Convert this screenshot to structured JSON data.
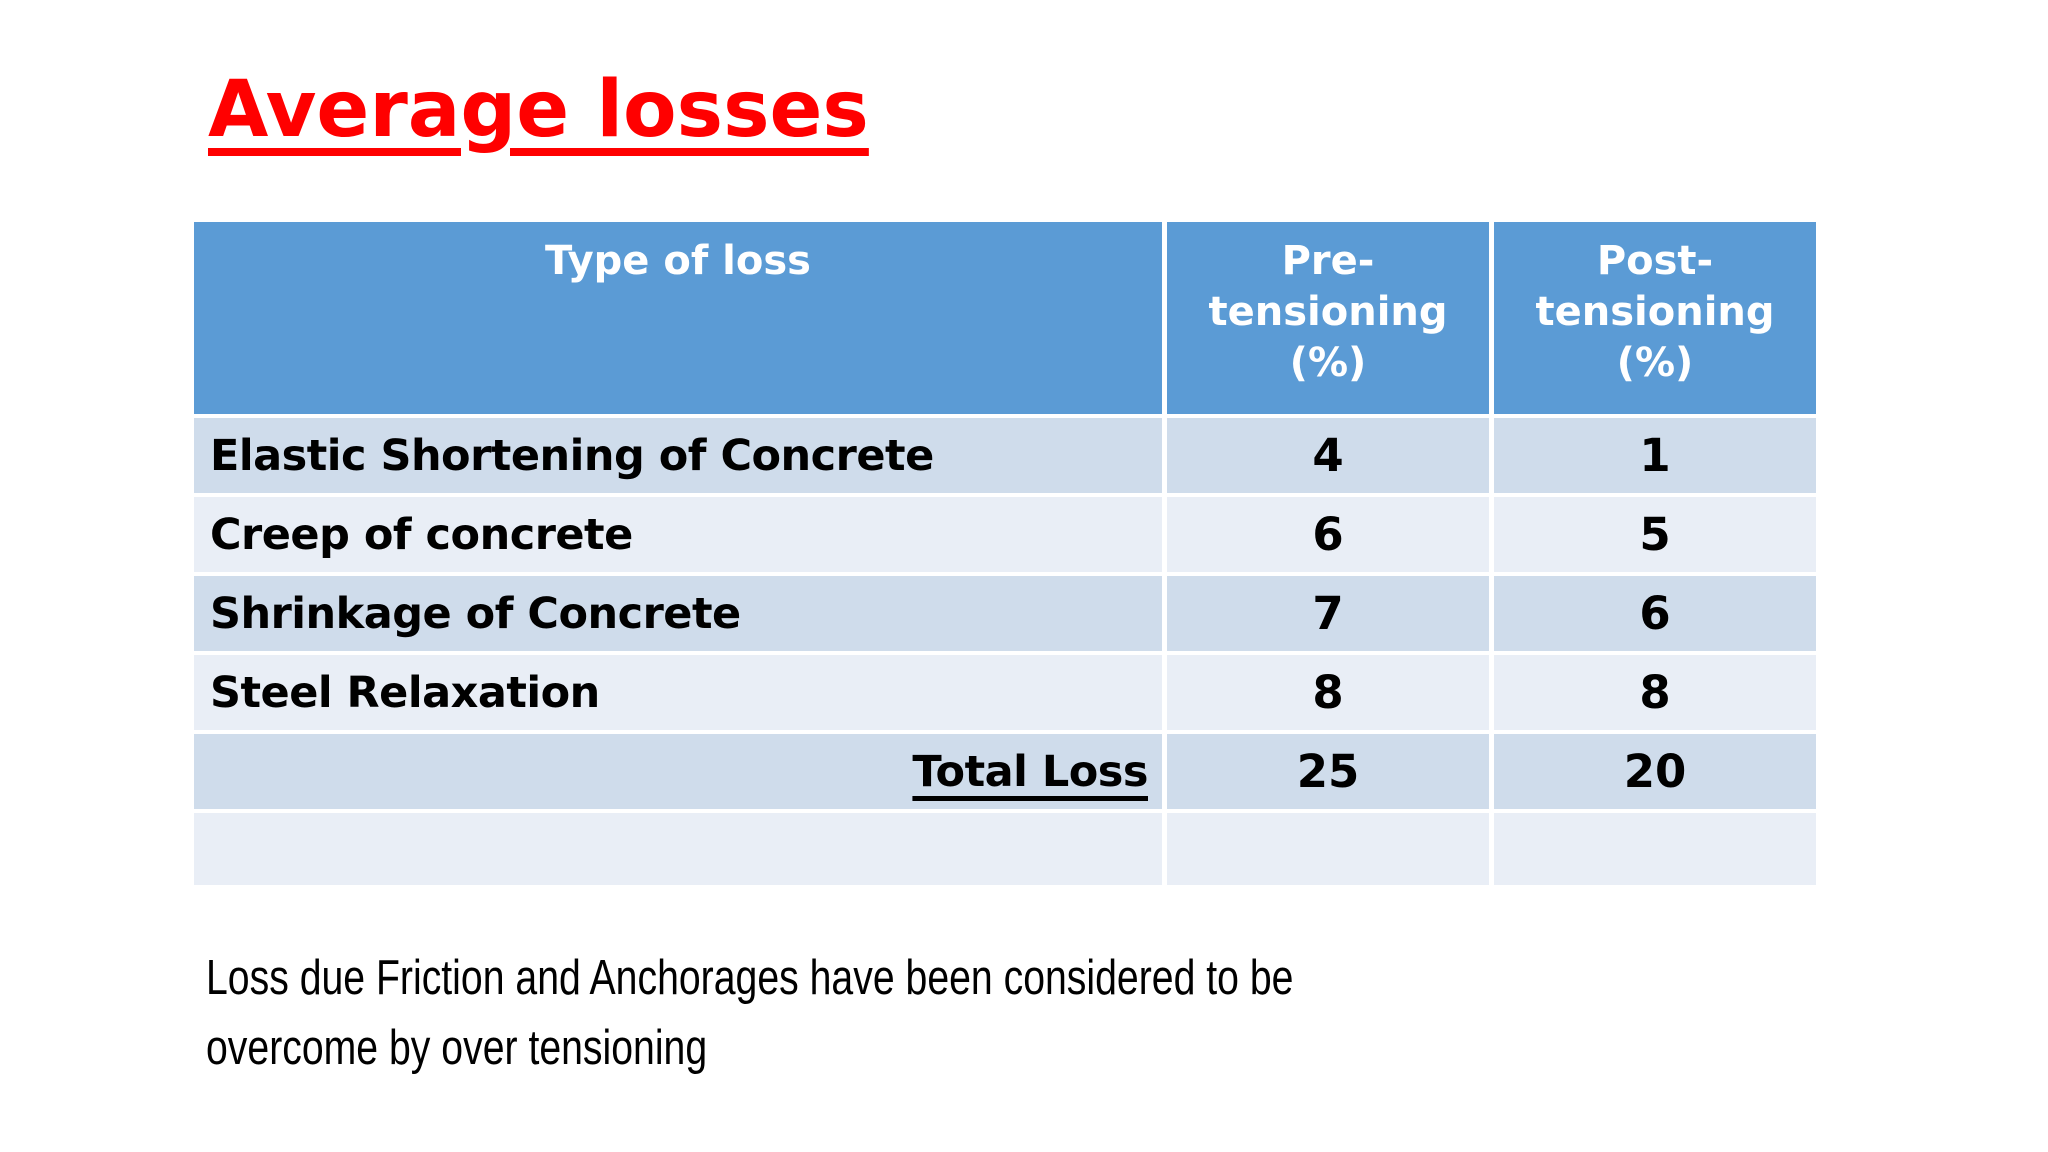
{
  "slide": {
    "title": "Average losses"
  },
  "table": {
    "header": {
      "type_of_loss": "Type of loss",
      "pre_tensioning": "Pre-tensioning (%)",
      "post_tensioning": "Post-tensioning (%)"
    },
    "rows": [
      {
        "label": "Elastic Shortening of Concrete",
        "pre": "4",
        "post": "1"
      },
      {
        "label": "Creep of concrete",
        "pre": "6",
        "post": "5"
      },
      {
        "label": "Shrinkage of Concrete",
        "pre": "7",
        "post": "6"
      },
      {
        "label": "Steel Relaxation",
        "pre": "8",
        "post": "8"
      },
      {
        "label": "Total Loss",
        "pre": "25",
        "post": "20"
      }
    ]
  },
  "footer": {
    "line1": "Loss due Friction and Anchorages have been considered to be",
    "line2": "overcome by over tensioning"
  },
  "colors": {
    "title_red": "#FF0000",
    "header_blue": "#5B9BD5",
    "row_band_dark": "#CFDCEB",
    "row_band_light": "#E9EEF6",
    "text": "#000000",
    "background": "#FFFFFF"
  }
}
